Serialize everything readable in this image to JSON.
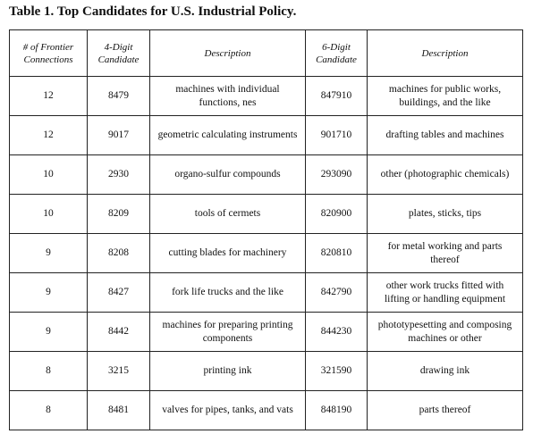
{
  "title": "Table 1. Top Candidates for U.S. Industrial Policy.",
  "table": {
    "header": [
      "# of Frontier Connections",
      "4-Digit Candidate",
      "Description",
      "6-Digit Candidate",
      "Description"
    ],
    "rows": [
      [
        "12",
        "8479",
        "machines with individual functions, nes",
        "847910",
        "machines for public works, buildings, and the like"
      ],
      [
        "12",
        "9017",
        "geometric calculating instruments",
        "901710",
        "drafting tables and machines"
      ],
      [
        "10",
        "2930",
        "organo-sulfur compounds",
        "293090",
        "other (photographic chemicals)"
      ],
      [
        "10",
        "8209",
        "tools of cermets",
        "820900",
        "plates, sticks, tips"
      ],
      [
        "9",
        "8208",
        "cutting blades for machinery",
        "820810",
        "for metal working and parts thereof"
      ],
      [
        "9",
        "8427",
        "fork life trucks and the like",
        "842790",
        "other work trucks fitted with lifting or handling equipment"
      ],
      [
        "9",
        "8442",
        "machines for preparing printing components",
        "844230",
        "phototypesetting and composing machines or other"
      ],
      [
        "8",
        "3215",
        "printing ink",
        "321590",
        "drawing ink"
      ],
      [
        "8",
        "8481",
        "valves for pipes, tanks, and vats",
        "848190",
        "parts thereof"
      ]
    ]
  }
}
